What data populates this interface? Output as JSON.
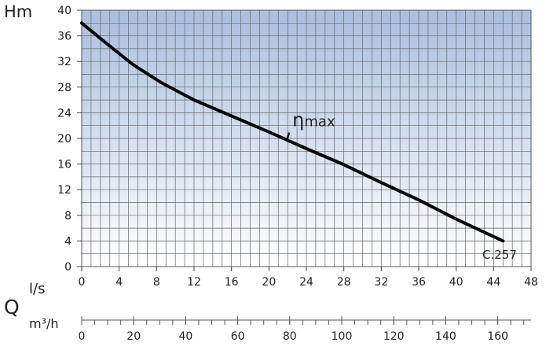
{
  "chart_data": {
    "type": "line",
    "title": "",
    "ylabel": "Hm",
    "xlabel": "Q",
    "x_unit_primary": "l/s",
    "x_unit_secondary": "m³/h",
    "xlim": [
      0,
      48
    ],
    "ylim": [
      0,
      40
    ],
    "x_ticks": [
      0,
      4,
      8,
      12,
      16,
      20,
      24,
      28,
      32,
      36,
      40,
      44,
      48
    ],
    "y_ticks": [
      0,
      4,
      8,
      12,
      16,
      20,
      24,
      28,
      32,
      36,
      40
    ],
    "secondary_x_ticks": [
      0,
      20,
      40,
      60,
      80,
      100,
      120,
      140,
      160
    ],
    "secondary_x_minor_step": 5,
    "grid": true,
    "series": [
      {
        "x": [
          0,
          2.5,
          5.5,
          8.5,
          12,
          16,
          20,
          24,
          28,
          32,
          36,
          40,
          45
        ],
        "y": [
          38,
          35,
          31.5,
          28.7,
          26,
          23.5,
          21,
          18.4,
          15.9,
          13.1,
          10.4,
          7.4,
          4
        ]
      }
    ],
    "annotations": [
      {
        "text": "η",
        "suffix": "max",
        "x": 22,
        "y": 20.3
      },
      {
        "text": "C.257"
      }
    ],
    "colors": {
      "curve": "#000000",
      "grid": "#666666",
      "plot_top": "#a9bfdf",
      "plot_bottom": "#ffffff"
    }
  }
}
